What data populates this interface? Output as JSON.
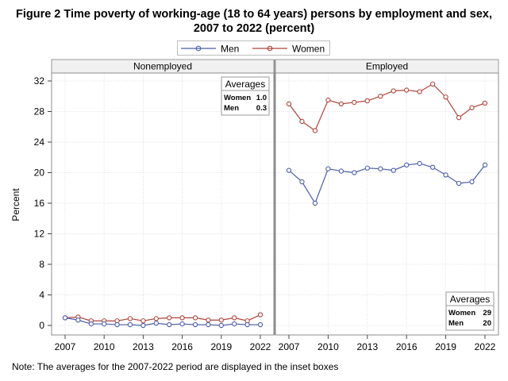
{
  "title_line1": "Figure 2 Time poverty of working-age (18 to 64 years) persons by employment and sex,",
  "title_line2": "2007  to 2022 (percent)",
  "note": "Note: The averages for the 2007-2022 period are displayed in the inset boxes",
  "colors": {
    "men": "#4b5ea8",
    "women": "#b0443a"
  },
  "chart_data": {
    "type": "line",
    "ylabel": "Percent",
    "ylim": [
      0,
      32
    ],
    "yticks": [
      0,
      4,
      8,
      12,
      16,
      20,
      24,
      28,
      32
    ],
    "xticks": [
      2007,
      2010,
      2013,
      2016,
      2019,
      2022
    ],
    "x": [
      2007,
      2008,
      2009,
      2010,
      2011,
      2012,
      2013,
      2014,
      2015,
      2016,
      2017,
      2018,
      2019,
      2020,
      2021,
      2022
    ],
    "grid": true,
    "legend": {
      "position": "top",
      "entries": [
        "Men",
        "Women"
      ]
    },
    "panels": [
      {
        "label": "Nonemployed",
        "series": [
          {
            "name": "Men",
            "values": [
              1.0,
              0.7,
              0.2,
              0.2,
              0.1,
              0.1,
              0.0,
              0.3,
              0.1,
              0.2,
              0.1,
              0.1,
              0.0,
              0.2,
              0.1,
              0.1
            ]
          },
          {
            "name": "Women",
            "values": [
              1.0,
              1.1,
              0.6,
              0.6,
              0.6,
              0.9,
              0.6,
              0.9,
              1.0,
              1.0,
              1.0,
              0.7,
              0.7,
              1.0,
              0.6,
              1.4
            ]
          }
        ],
        "averages": {
          "title": "Averages",
          "rows": [
            {
              "label": "Women",
              "value": "1.0"
            },
            {
              "label": "Men",
              "value": "0.3"
            }
          ]
        }
      },
      {
        "label": "Employed",
        "series": [
          {
            "name": "Men",
            "values": [
              20.3,
              18.8,
              16.0,
              20.5,
              20.2,
              20.0,
              20.6,
              20.5,
              20.3,
              21.0,
              21.2,
              20.7,
              19.7,
              18.6,
              18.8,
              21.0
            ]
          },
          {
            "name": "Women",
            "values": [
              29.0,
              26.7,
              25.5,
              29.5,
              29.0,
              29.2,
              29.4,
              30.0,
              30.7,
              30.8,
              30.6,
              31.6,
              29.9,
              27.2,
              28.5,
              29.1
            ]
          }
        ],
        "averages": {
          "title": "Averages",
          "rows": [
            {
              "label": "Women",
              "value": "29"
            },
            {
              "label": "Men",
              "value": "20"
            }
          ]
        }
      }
    ]
  }
}
